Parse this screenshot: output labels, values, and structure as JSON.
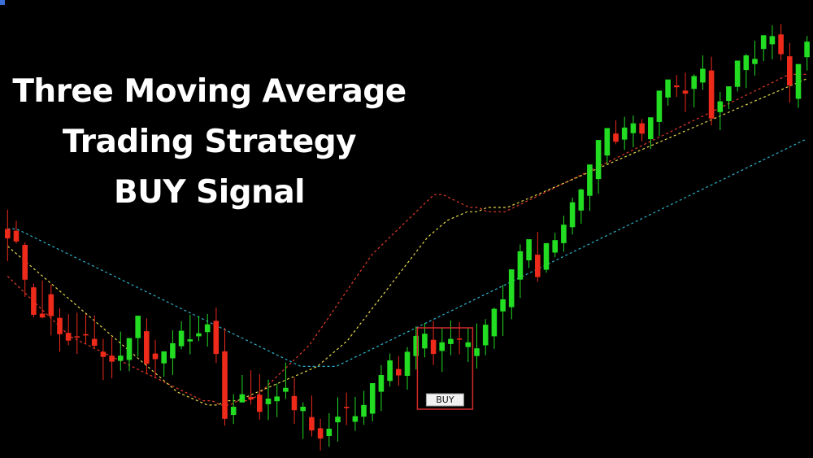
{
  "title_lines": [
    "Three Moving Average",
    "Trading Strategy",
    "BUY Signal"
  ],
  "chart_data": {
    "type": "candlestick",
    "title": "Three Moving Average Trading Strategy BUY Signal",
    "xlabel": "",
    "ylabel": "",
    "grid": false,
    "ylim": [
      0,
      100
    ],
    "colors": {
      "background": "#000000",
      "bull": "#22dd22",
      "bear": "#ee2a1a",
      "ma_fast": "#e03a2a",
      "ma_mid": "#e6d84a",
      "ma_slow": "#2fb0c8",
      "signal_box": "#d42a2a"
    },
    "candles": [
      [
        52.0,
        56.5,
        49.8,
        44.5
      ],
      [
        51.6,
        53.9,
        49.1,
        48.6
      ],
      [
        48.3,
        48.9,
        40.2,
        36.2
      ],
      [
        38.4,
        39.3,
        32.0,
        31.4
      ],
      [
        32.3,
        40.0,
        31.4,
        31.2
      ],
      [
        36.8,
        39.1,
        31.7,
        27.2
      ],
      [
        31.3,
        33.5,
        27.5,
        23.4
      ],
      [
        27.8,
        32.2,
        26.0,
        24.9
      ],
      [
        27.0,
        32.5,
        26.9,
        22.9
      ],
      [
        27.5,
        32.2,
        27.2,
        25.3
      ],
      [
        26.4,
        31.9,
        24.8,
        24.0
      ],
      [
        23.4,
        26.4,
        22.2,
        16.8
      ],
      [
        22.5,
        26.8,
        21.1,
        17.2
      ],
      [
        21.3,
        28.1,
        22.5,
        19.0
      ],
      [
        21.5,
        26.2,
        26.6,
        18.9
      ],
      [
        26.6,
        30.3,
        31.8,
        22.3
      ],
      [
        28.2,
        31.2,
        20.6,
        18.2
      ],
      [
        23.0,
        26.2,
        21.7,
        17.3
      ],
      [
        20.7,
        22.8,
        23.5,
        17.6
      ],
      [
        21.9,
        28.4,
        25.4,
        18.0
      ],
      [
        24.7,
        30.5,
        28.3,
        24.0
      ],
      [
        25.8,
        32.0,
        26.3,
        22.8
      ],
      [
        27.0,
        31.7,
        27.7,
        25.9
      ],
      [
        28.0,
        32.2,
        29.8,
        24.6
      ],
      [
        30.6,
        33.7,
        22.9,
        20.8
      ],
      [
        23.5,
        29.0,
        7.8,
        6.2
      ],
      [
        8.7,
        13.5,
        10.6,
        6.6
      ],
      [
        11.6,
        18.0,
        13.5,
        12.4
      ],
      [
        12.9,
        19.1,
        12.3,
        11.1
      ],
      [
        13.4,
        18.2,
        9.4,
        7.6
      ],
      [
        11.2,
        16.9,
        12.5,
        7.5
      ],
      [
        11.9,
        16.0,
        13.0,
        8.2
      ],
      [
        14.1,
        20.9,
        15.0,
        12.4
      ],
      [
        13.1,
        17.4,
        9.8,
        6.6
      ],
      [
        9.6,
        11.6,
        10.6,
        3.1
      ],
      [
        8.2,
        13.2,
        5.1,
        3.7
      ],
      [
        5.6,
        7.8,
        3.2,
        0.4
      ],
      [
        3.8,
        9.1,
        5.5,
        1.3
      ],
      [
        7.0,
        12.8,
        8.3,
        2.5
      ],
      [
        10.6,
        13.9,
        10.3,
        6.3
      ],
      [
        7.1,
        12.9,
        8.4,
        5.0
      ],
      [
        8.3,
        14.3,
        11.0,
        6.4
      ],
      [
        9.0,
        12.9,
        16.1,
        7.2
      ],
      [
        14.1,
        20.3,
        18.0,
        9.6
      ],
      [
        16.6,
        23.0,
        21.4,
        15.3
      ],
      [
        19.4,
        22.4,
        17.9,
        15.5
      ],
      [
        17.8,
        24.5,
        23.4,
        14.6
      ],
      [
        22.4,
        29.3,
        27.1,
        19.3
      ],
      [
        24.2,
        30.1,
        27.6,
        22.1
      ],
      [
        26.2,
        30.6,
        22.9,
        20.3
      ],
      [
        23.6,
        29.0,
        25.6,
        18.7
      ],
      [
        25.2,
        30.7,
        26.4,
        22.6
      ],
      [
        26.5,
        30.3,
        26.3,
        22.8
      ],
      [
        24.5,
        28.9,
        25.6,
        21.0
      ],
      [
        22.4,
        30.0,
        24.2,
        19.5
      ],
      [
        24.9,
        31.0,
        29.7,
        22.6
      ],
      [
        27.0,
        33.7,
        33.4,
        24.1
      ],
      [
        32.8,
        39.0,
        35.6,
        27.1
      ],
      [
        33.8,
        41.0,
        42.6,
        31.0
      ],
      [
        40.2,
        48.4,
        46.8,
        35.9
      ],
      [
        44.7,
        48.0,
        49.6,
        42.9
      ],
      [
        46.0,
        51.3,
        40.8,
        39.7
      ],
      [
        42.5,
        45.4,
        48.7,
        41.8
      ],
      [
        46.5,
        51.1,
        49.4,
        45.4
      ],
      [
        48.7,
        55.1,
        53.0,
        46.7
      ],
      [
        52.4,
        59.3,
        58.2,
        50.7
      ],
      [
        56.3,
        61.4,
        61.2,
        53.2
      ],
      [
        59.7,
        66.4,
        67.0,
        56.2
      ],
      [
        63.6,
        71.3,
        72.7,
        60.2
      ],
      [
        69.1,
        74.7,
        75.5,
        67.1
      ],
      [
        74.2,
        77.3,
        72.3,
        71.7
      ],
      [
        72.8,
        78.1,
        75.6,
        70.4
      ],
      [
        74.3,
        78.4,
        76.6,
        71.0
      ],
      [
        76.6,
        77.6,
        74.2,
        72.4
      ],
      [
        72.9,
        76.3,
        78.0,
        70.6
      ],
      [
        76.9,
        82.1,
        84.2,
        73.6
      ],
      [
        82.6,
        86.5,
        86.8,
        80.7
      ],
      [
        85.4,
        87.8,
        85.0,
        82.7
      ],
      [
        84.2,
        88.4,
        83.5,
        79.2
      ],
      [
        84.6,
        88.0,
        87.6,
        80.3
      ],
      [
        86.1,
        92.4,
        89.3,
        84.4
      ],
      [
        88.9,
        92.1,
        77.7,
        76.1
      ],
      [
        79.2,
        83.9,
        81.7,
        75.0
      ],
      [
        81.8,
        84.8,
        85.2,
        79.9
      ],
      [
        85.1,
        90.0,
        91.2,
        84.0
      ],
      [
        89.0,
        92.7,
        92.4,
        84.8
      ],
      [
        90.4,
        95.8,
        91.6,
        87.7
      ],
      [
        93.9,
        97.1,
        97.1,
        91.1
      ],
      [
        95.0,
        99.4,
        96.9,
        91.5
      ],
      [
        97.3,
        99.7,
        92.7,
        91.2
      ],
      [
        92.2,
        95.3,
        85.4,
        81.4
      ],
      [
        82.3,
        88.4,
        90.4,
        80.2
      ],
      [
        92.0,
        96.9,
        95.6,
        88.9
      ]
    ],
    "moving_averages": [
      {
        "key": "ma_fast",
        "values": [
          41,
          39,
          37,
          35,
          33,
          31,
          29,
          27,
          26,
          25,
          24,
          23,
          22,
          21,
          20,
          19,
          18,
          17,
          16,
          15,
          14,
          13,
          12,
          12,
          11,
          11,
          12,
          12,
          13,
          15,
          17,
          19,
          21,
          23,
          25,
          28,
          31,
          34,
          37,
          40,
          43,
          46,
          48,
          50,
          52,
          54,
          56,
          58,
          60,
          60,
          59,
          58,
          57,
          57,
          56,
          56,
          56,
          57,
          58,
          59,
          60,
          61,
          62,
          63,
          64,
          65,
          66,
          67,
          68,
          69,
          70,
          71,
          72,
          73,
          74,
          75,
          76,
          77,
          78,
          79,
          80,
          81,
          82,
          83,
          84,
          85,
          86,
          87,
          88,
          88,
          88
        ]
      },
      {
        "key": "ma_mid",
        "values": [
          48,
          46,
          44,
          42,
          40,
          38,
          36,
          34,
          32,
          30,
          28,
          26,
          24,
          22,
          20,
          18,
          16,
          14,
          13,
          12,
          11,
          11,
          12,
          12,
          13,
          14,
          15,
          16,
          17,
          18,
          19,
          20,
          22,
          24,
          26,
          29,
          32,
          35,
          38,
          41,
          44,
          47,
          50,
          52,
          54,
          55,
          56,
          56,
          57,
          57,
          57,
          58,
          59,
          60,
          61,
          62,
          63,
          64,
          65,
          66,
          67,
          68,
          69,
          70,
          71,
          72,
          73,
          74,
          75,
          76,
          77,
          78,
          79,
          80,
          81,
          82,
          83,
          84,
          85,
          86,
          87
        ]
      },
      {
        "key": "ma_slow",
        "values": [
          52,
          52,
          51,
          50,
          49,
          48,
          47,
          46,
          45,
          44,
          43,
          42,
          41,
          40,
          39,
          38,
          37,
          36,
          35,
          34,
          33,
          32,
          31,
          30,
          29,
          28,
          27,
          26,
          25,
          24,
          23,
          22,
          21,
          20,
          20,
          20,
          20,
          20,
          21,
          22,
          23,
          24,
          25,
          26,
          27,
          28,
          29,
          30,
          31,
          32,
          33,
          34,
          35,
          36,
          37,
          38,
          39,
          40,
          41,
          42,
          43,
          44,
          45,
          46,
          47,
          48,
          49,
          50,
          51,
          52,
          53,
          54,
          55,
          56,
          57,
          58,
          59,
          60,
          61,
          62,
          63,
          64,
          65,
          66,
          67,
          68,
          69,
          70,
          71,
          72,
          73
        ]
      }
    ],
    "signal": {
      "label": "BUY",
      "index": 48
    }
  }
}
